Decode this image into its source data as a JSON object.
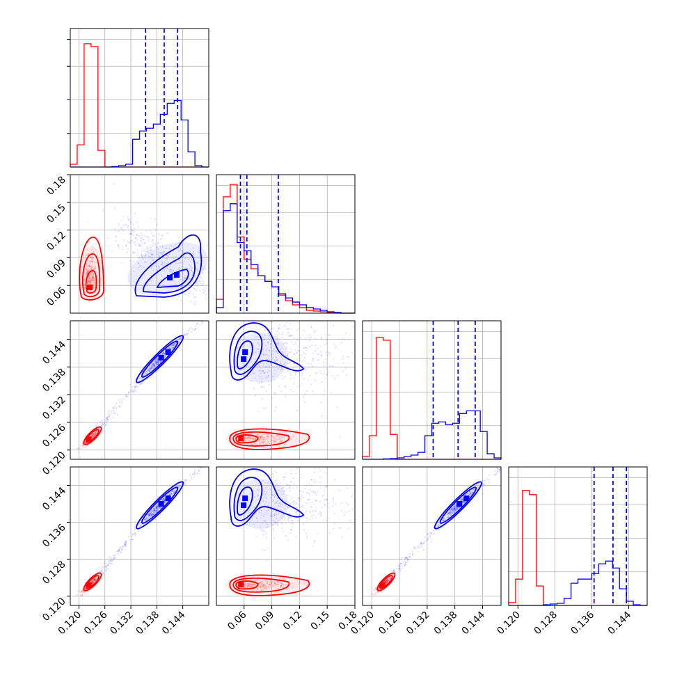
{
  "chart_data": {
    "type": "corner",
    "grid": true,
    "legend": "none",
    "series": [
      {
        "color": "#ff0000"
      },
      {
        "color": "#0000ff"
      }
    ],
    "parameters": [
      {
        "range": [
          0.118,
          0.15
        ],
        "ticks": [
          "0.120",
          "0.126",
          "0.132",
          "0.138",
          "0.144"
        ],
        "tick_values": [
          0.12,
          0.126,
          0.132,
          0.138,
          0.144
        ]
      },
      {
        "range": [
          0.03,
          0.18
        ],
        "ticks": [
          "0.06",
          "0.09",
          "0.12",
          "0.15",
          "0.18"
        ],
        "tick_values": [
          0.06,
          0.09,
          0.12,
          0.15,
          0.18
        ]
      },
      {
        "range": [
          0.118,
          0.148
        ],
        "ticks": [
          "0.120",
          "0.126",
          "0.132",
          "0.138",
          "0.144"
        ],
        "tick_values": [
          0.12,
          0.126,
          0.132,
          0.138,
          0.144
        ]
      },
      {
        "range": [
          0.118,
          0.148
        ],
        "ticks": [
          "0.120",
          "0.128",
          "0.136",
          "0.144"
        ],
        "tick_values": [
          0.12,
          0.128,
          0.136,
          0.144
        ]
      }
    ],
    "histograms": [
      {
        "counts": {
          "red": [
            0.02,
            0.16,
            0.89,
            0.87,
            0.12,
            0,
            0,
            0,
            0,
            0,
            0,
            0,
            0,
            0,
            0,
            0,
            0,
            0,
            0,
            0
          ],
          "blue": [
            0,
            0,
            0,
            0,
            0,
            0,
            0.003,
            0.01,
            0.02,
            0.2,
            0.26,
            0.28,
            0.31,
            0.38,
            0.46,
            0.48,
            0.34,
            0.11,
            0.01,
            0
          ]
        }
      },
      {
        "counts": {
          "red": [
            0.1,
            0.84,
            0.93,
            0.55,
            0.39,
            0.32,
            0.27,
            0.23,
            0.19,
            0.13,
            0.09,
            0.06,
            0.04,
            0.02,
            0.015,
            0.01,
            0.005,
            0,
            0,
            0
          ],
          "blue": [
            0.04,
            0.74,
            0.79,
            0.51,
            0.45,
            0.35,
            0.27,
            0.23,
            0.19,
            0.14,
            0.11,
            0.08,
            0.06,
            0.04,
            0.03,
            0.02,
            0.01,
            0.005,
            0,
            0
          ]
        }
      },
      {
        "counts": {
          "red": [
            0.02,
            0.17,
            0.88,
            0.86,
            0.18,
            0,
            0,
            0,
            0,
            0,
            0,
            0,
            0,
            0,
            0,
            0,
            0,
            0,
            0,
            0
          ],
          "blue": [
            0,
            0,
            0,
            0.003,
            0.005,
            0.01,
            0.02,
            0.03,
            0.05,
            0.17,
            0.26,
            0.27,
            0.25,
            0.26,
            0.33,
            0.35,
            0.35,
            0.2,
            0.04,
            0.01
          ]
        }
      },
      {
        "counts": {
          "red": [
            0.02,
            0.19,
            0.83,
            0.8,
            0.14,
            0,
            0,
            0,
            0,
            0,
            0,
            0,
            0,
            0,
            0,
            0,
            0,
            0,
            0,
            0
          ],
          "blue": [
            0,
            0,
            0,
            0,
            0,
            0.005,
            0.01,
            0.015,
            0.05,
            0.16,
            0.19,
            0.19,
            0.23,
            0.3,
            0.32,
            0.27,
            0.12,
            0.03,
            0.005,
            0
          ]
        }
      }
    ],
    "quantiles": {
      "color": "#0000ff",
      "values": [
        [
          0.1354,
          0.1397,
          0.1428
        ],
        [
          0.056,
          0.063,
          0.097
        ],
        [
          0.1333,
          0.1387,
          0.1424
        ],
        [
          0.1365,
          0.1406,
          0.1435
        ]
      ]
    }
  }
}
